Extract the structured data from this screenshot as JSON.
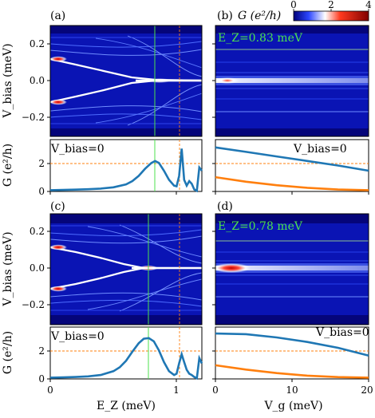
{
  "panel_labels": [
    "(a)",
    "(b)",
    "(c)",
    "(d)"
  ],
  "colorbar": {
    "label": "G (e²/h)",
    "ticks": [
      "0",
      "2",
      "4"
    ],
    "colors": [
      "#00007a",
      "#2c46ff",
      "#ffffff",
      "#ff3a1f",
      "#800000"
    ]
  },
  "chart_data": [
    {
      "panel": "(a)",
      "type": "heatmap",
      "xlabel": "E_Z (meV)",
      "ylabel": "V_bias (meV)",
      "xlim": [
        0,
        1.2
      ],
      "ylim": [
        -0.28,
        0.28
      ],
      "yticks": [
        "0.2",
        "0.0",
        "−0.2"
      ],
      "ytick_values": [
        0.2,
        0.0,
        -0.2
      ],
      "colormap_range": [
        0,
        4
      ],
      "markers": {
        "green_line_ez": 0.83,
        "orange_line_ez": 1.03
      }
    },
    {
      "panel": "(a) lower",
      "type": "line",
      "annotation": "V_bias=0",
      "xlabel": "",
      "ylabel": "G (e²/h)",
      "xlim": [
        0,
        1.2
      ],
      "ylim": [
        0,
        4
      ],
      "yticks": [
        "0",
        "2"
      ],
      "ytick_values": [
        0,
        2
      ],
      "reference_line_y": 2,
      "series": [
        {
          "x": [
            0,
            0.1,
            0.2,
            0.3,
            0.4,
            0.5,
            0.6,
            0.65,
            0.7,
            0.75,
            0.8,
            0.83,
            0.86,
            0.9,
            0.94,
            0.98,
            1.0,
            1.02,
            1.04,
            1.06,
            1.08,
            1.1,
            1.12,
            1.14,
            1.16,
            1.18,
            1.2
          ],
          "values": [
            0.1,
            0.12,
            0.14,
            0.17,
            0.22,
            0.32,
            0.55,
            0.8,
            1.2,
            1.75,
            2.2,
            2.35,
            2.2,
            1.6,
            0.9,
            0.45,
            0.4,
            1.2,
            3.3,
            0.9,
            0.45,
            0.8,
            0.6,
            0.15,
            0.05,
            1.85,
            1.6
          ]
        }
      ]
    },
    {
      "panel": "(b)",
      "type": "heatmap",
      "annotation": "E_Z=0.83 meV",
      "xlabel": "V_g (meV)",
      "xlim": [
        0,
        20
      ],
      "ylim": [
        -0.28,
        0.28
      ],
      "colormap_range": [
        0,
        4
      ]
    },
    {
      "panel": "(b) lower",
      "type": "line",
      "annotation": "V_bias=0",
      "xlim": [
        0,
        20
      ],
      "ylim": [
        0,
        4
      ],
      "reference_line_y": 2,
      "series": [
        {
          "color": "#1f77b4",
          "x": [
            0,
            4,
            8,
            12,
            16,
            20
          ],
          "values": [
            3.4,
            3.05,
            2.7,
            2.35,
            2.0,
            1.6
          ]
        },
        {
          "color": "#ff7f0e",
          "x": [
            0,
            4,
            8,
            12,
            16,
            20
          ],
          "values": [
            1.1,
            0.75,
            0.48,
            0.28,
            0.15,
            0.1
          ]
        }
      ]
    },
    {
      "panel": "(c)",
      "type": "heatmap",
      "xlabel": "E_Z (meV)",
      "ylabel": "V_bias (meV)",
      "xlim": [
        0,
        1.2
      ],
      "ylim": [
        -0.28,
        0.28
      ],
      "yticks": [
        "0.2",
        "0.0",
        "−0.2"
      ],
      "ytick_values": [
        0.2,
        0.0,
        -0.2
      ],
      "colormap_range": [
        0,
        4
      ],
      "markers": {
        "green_line_ez": 0.78,
        "orange_line_ez": 1.03
      }
    },
    {
      "panel": "(c) lower",
      "type": "line",
      "annotation": "V_bias=0",
      "xlabel": "E_Z (meV)",
      "ylabel": "G (e²/h)",
      "xlim": [
        0,
        1.2
      ],
      "ylim": [
        0,
        4
      ],
      "xticks": [
        "0",
        "1"
      ],
      "xtick_values": [
        0,
        1
      ],
      "yticks": [
        "0",
        "2"
      ],
      "ytick_values": [
        0,
        2
      ],
      "reference_line_y": 2,
      "series": [
        {
          "x": [
            0,
            0.1,
            0.2,
            0.3,
            0.4,
            0.5,
            0.55,
            0.6,
            0.65,
            0.7,
            0.74,
            0.78,
            0.82,
            0.86,
            0.9,
            0.94,
            0.98,
            1.0,
            1.02,
            1.04,
            1.06,
            1.08,
            1.1,
            1.12,
            1.14,
            1.16,
            1.18,
            1.2
          ],
          "values": [
            0.1,
            0.12,
            0.15,
            0.2,
            0.3,
            0.6,
            0.9,
            1.4,
            2.1,
            2.75,
            3.1,
            3.15,
            2.9,
            2.2,
            1.3,
            0.6,
            0.3,
            0.4,
            1.2,
            1.9,
            1.3,
            0.7,
            0.4,
            0.3,
            0.15,
            0.05,
            1.6,
            1.2
          ]
        }
      ]
    },
    {
      "panel": "(d)",
      "type": "heatmap",
      "annotation": "E_Z=0.78 meV",
      "xlabel": "V_g (meV)",
      "xlim": [
        0,
        20
      ],
      "ylim": [
        -0.28,
        0.28
      ],
      "colormap_range": [
        0,
        4
      ]
    },
    {
      "panel": "(d) lower",
      "type": "line",
      "annotation": "V_bias=0",
      "xlabel": "V_g (meV)",
      "xlim": [
        0,
        20
      ],
      "ylim": [
        0,
        4
      ],
      "xticks": [
        "0",
        "10",
        "20"
      ],
      "xtick_values": [
        0,
        10,
        20
      ],
      "reference_line_y": 2,
      "series": [
        {
          "color": "#1f77b4",
          "x": [
            0,
            4,
            8,
            12,
            16,
            20
          ],
          "values": [
            3.5,
            3.45,
            3.2,
            2.85,
            2.4,
            1.8
          ]
        },
        {
          "color": "#ff7f0e",
          "x": [
            0,
            4,
            8,
            12,
            16,
            20
          ],
          "values": [
            1.05,
            0.72,
            0.45,
            0.25,
            0.14,
            0.1
          ]
        }
      ]
    }
  ]
}
